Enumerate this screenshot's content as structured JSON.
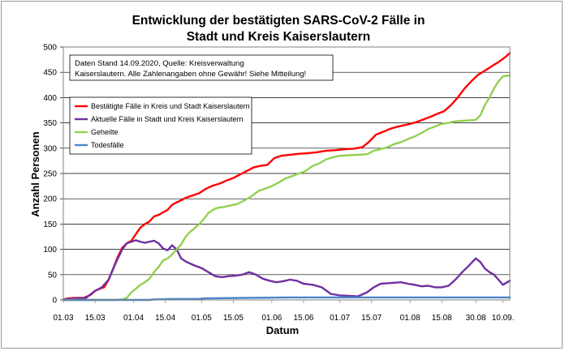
{
  "chart_data": {
    "type": "line",
    "title": "Entwicklung der bestätigten SARS-CoV-2 Fälle in",
    "subtitle": "Stadt und Kreis Kaiserslautern",
    "xlabel": "Datum",
    "ylabel": "Anzahl Personen",
    "ylim": [
      0,
      500
    ],
    "xlim": [
      0,
      197
    ],
    "y_ticks": [
      0,
      50,
      100,
      150,
      200,
      250,
      300,
      350,
      400,
      450,
      500
    ],
    "x_ticks": [
      {
        "x": 0,
        "label": "01.03"
      },
      {
        "x": 14,
        "label": "15.03"
      },
      {
        "x": 31,
        "label": "01.04"
      },
      {
        "x": 45,
        "label": "15.04"
      },
      {
        "x": 61,
        "label": "01.05"
      },
      {
        "x": 75,
        "label": "15.05"
      },
      {
        "x": 92,
        "label": "01.06"
      },
      {
        "x": 106,
        "label": "15.06"
      },
      {
        "x": 122,
        "label": "01.07"
      },
      {
        "x": 136,
        "label": "15.07"
      },
      {
        "x": 153,
        "label": "01.08"
      },
      {
        "x": 167,
        "label": "15.08"
      },
      {
        "x": 182,
        "label": "30.08"
      },
      {
        "x": 194,
        "label": "10.09."
      }
    ],
    "grid": "horizontal",
    "legend_position": "left",
    "note": [
      "Daten Stand 14.09.2020, Quelle: Kreisverwaltung",
      "Kaiserslautern. Alle Zahlenangaben ohne Gewähr! Siehe Mitteilung!"
    ],
    "series": [
      {
        "name": "Bestätigte Fälle in Kreis und Stadt Kaiserslautern",
        "color": "#ff0000",
        "points": [
          [
            0,
            1
          ],
          [
            2,
            3
          ],
          [
            5,
            4
          ],
          [
            9,
            4
          ],
          [
            12,
            10
          ],
          [
            14,
            18
          ],
          [
            16,
            22
          ],
          [
            18,
            25
          ],
          [
            20,
            40
          ],
          [
            22,
            62
          ],
          [
            24,
            85
          ],
          [
            26,
            103
          ],
          [
            28,
            112
          ],
          [
            30,
            117
          ],
          [
            32,
            130
          ],
          [
            34,
            143
          ],
          [
            36,
            150
          ],
          [
            38,
            155
          ],
          [
            40,
            165
          ],
          [
            42,
            168
          ],
          [
            44,
            173
          ],
          [
            46,
            178
          ],
          [
            48,
            188
          ],
          [
            50,
            193
          ],
          [
            52,
            197
          ],
          [
            54,
            202
          ],
          [
            56,
            205
          ],
          [
            58,
            208
          ],
          [
            60,
            211
          ],
          [
            63,
            220
          ],
          [
            66,
            226
          ],
          [
            69,
            230
          ],
          [
            72,
            236
          ],
          [
            75,
            241
          ],
          [
            78,
            248
          ],
          [
            81,
            255
          ],
          [
            84,
            262
          ],
          [
            87,
            265
          ],
          [
            90,
            267
          ],
          [
            93,
            280
          ],
          [
            96,
            285
          ],
          [
            100,
            287
          ],
          [
            104,
            289
          ],
          [
            108,
            290
          ],
          [
            112,
            292
          ],
          [
            116,
            295
          ],
          [
            120,
            296
          ],
          [
            124,
            298
          ],
          [
            128,
            299
          ],
          [
            132,
            302
          ],
          [
            135,
            313
          ],
          [
            138,
            327
          ],
          [
            141,
            332
          ],
          [
            144,
            338
          ],
          [
            147,
            342
          ],
          [
            150,
            345
          ],
          [
            153,
            348
          ],
          [
            156,
            352
          ],
          [
            159,
            357
          ],
          [
            162,
            362
          ],
          [
            165,
            368
          ],
          [
            168,
            373
          ],
          [
            171,
            385
          ],
          [
            174,
            400
          ],
          [
            177,
            418
          ],
          [
            180,
            432
          ],
          [
            183,
            445
          ],
          [
            186,
            453
          ],
          [
            189,
            462
          ],
          [
            192,
            470
          ],
          [
            195,
            480
          ],
          [
            197,
            488
          ]
        ]
      },
      {
        "name": "Aktuelle Fälle in Stadt und Kreis Kaiserslautern",
        "color": "#7030a0",
        "points": [
          [
            0,
            1
          ],
          [
            5,
            3
          ],
          [
            10,
            4
          ],
          [
            14,
            18
          ],
          [
            17,
            25
          ],
          [
            20,
            40
          ],
          [
            23,
            72
          ],
          [
            26,
            100
          ],
          [
            28,
            112
          ],
          [
            30,
            115
          ],
          [
            32,
            118
          ],
          [
            34,
            115
          ],
          [
            36,
            113
          ],
          [
            38,
            115
          ],
          [
            40,
            117
          ],
          [
            42,
            112
          ],
          [
            44,
            102
          ],
          [
            46,
            98
          ],
          [
            48,
            108
          ],
          [
            50,
            100
          ],
          [
            52,
            82
          ],
          [
            54,
            76
          ],
          [
            56,
            72
          ],
          [
            58,
            68
          ],
          [
            61,
            63
          ],
          [
            64,
            55
          ],
          [
            67,
            47
          ],
          [
            70,
            45
          ],
          [
            73,
            47
          ],
          [
            76,
            48
          ],
          [
            79,
            50
          ],
          [
            82,
            55
          ],
          [
            85,
            50
          ],
          [
            88,
            42
          ],
          [
            91,
            38
          ],
          [
            94,
            35
          ],
          [
            97,
            37
          ],
          [
            100,
            40
          ],
          [
            103,
            38
          ],
          [
            106,
            32
          ],
          [
            110,
            30
          ],
          [
            114,
            25
          ],
          [
            118,
            12
          ],
          [
            122,
            9
          ],
          [
            126,
            8
          ],
          [
            130,
            7
          ],
          [
            134,
            15
          ],
          [
            137,
            25
          ],
          [
            140,
            32
          ],
          [
            143,
            33
          ],
          [
            146,
            34
          ],
          [
            149,
            35
          ],
          [
            152,
            32
          ],
          [
            155,
            30
          ],
          [
            158,
            27
          ],
          [
            161,
            28
          ],
          [
            164,
            25
          ],
          [
            167,
            25
          ],
          [
            170,
            28
          ],
          [
            173,
            40
          ],
          [
            176,
            55
          ],
          [
            179,
            68
          ],
          [
            182,
            82
          ],
          [
            184,
            75
          ],
          [
            186,
            62
          ],
          [
            188,
            55
          ],
          [
            190,
            50
          ],
          [
            192,
            40
          ],
          [
            194,
            30
          ],
          [
            197,
            38
          ]
        ]
      },
      {
        "name": "Geheilte",
        "color": "#92d050",
        "points": [
          [
            0,
            0
          ],
          [
            22,
            0
          ],
          [
            26,
            1
          ],
          [
            28,
            4
          ],
          [
            30,
            15
          ],
          [
            32,
            22
          ],
          [
            34,
            30
          ],
          [
            36,
            35
          ],
          [
            38,
            42
          ],
          [
            40,
            55
          ],
          [
            42,
            65
          ],
          [
            44,
            78
          ],
          [
            46,
            82
          ],
          [
            48,
            90
          ],
          [
            50,
            100
          ],
          [
            52,
            110
          ],
          [
            54,
            125
          ],
          [
            56,
            135
          ],
          [
            58,
            142
          ],
          [
            60,
            150
          ],
          [
            62,
            160
          ],
          [
            64,
            172
          ],
          [
            66,
            178
          ],
          [
            68,
            182
          ],
          [
            71,
            184
          ],
          [
            74,
            187
          ],
          [
            77,
            190
          ],
          [
            80,
            197
          ],
          [
            83,
            205
          ],
          [
            86,
            215
          ],
          [
            89,
            220
          ],
          [
            92,
            225
          ],
          [
            95,
            232
          ],
          [
            98,
            240
          ],
          [
            101,
            245
          ],
          [
            104,
            250
          ],
          [
            107,
            255
          ],
          [
            110,
            265
          ],
          [
            113,
            270
          ],
          [
            116,
            278
          ],
          [
            119,
            282
          ],
          [
            122,
            285
          ],
          [
            126,
            286
          ],
          [
            130,
            287
          ],
          [
            134,
            288
          ],
          [
            137,
            295
          ],
          [
            140,
            298
          ],
          [
            143,
            302
          ],
          [
            146,
            308
          ],
          [
            149,
            312
          ],
          [
            152,
            318
          ],
          [
            155,
            323
          ],
          [
            158,
            330
          ],
          [
            161,
            338
          ],
          [
            164,
            343
          ],
          [
            167,
            348
          ],
          [
            170,
            350
          ],
          [
            173,
            353
          ],
          [
            176,
            354
          ],
          [
            179,
            355
          ],
          [
            182,
            356
          ],
          [
            184,
            365
          ],
          [
            186,
            385
          ],
          [
            188,
            400
          ],
          [
            190,
            418
          ],
          [
            192,
            432
          ],
          [
            194,
            442
          ],
          [
            197,
            444
          ]
        ]
      },
      {
        "name": "Todesfälle",
        "color": "#4a86c8",
        "points": [
          [
            0,
            0
          ],
          [
            38,
            0
          ],
          [
            40,
            1
          ],
          [
            48,
            2
          ],
          [
            60,
            2
          ],
          [
            62,
            3
          ],
          [
            80,
            4
          ],
          [
            100,
            5
          ],
          [
            120,
            5
          ],
          [
            140,
            5
          ],
          [
            160,
            5
          ],
          [
            180,
            5
          ],
          [
            197,
            5
          ]
        ]
      }
    ]
  }
}
